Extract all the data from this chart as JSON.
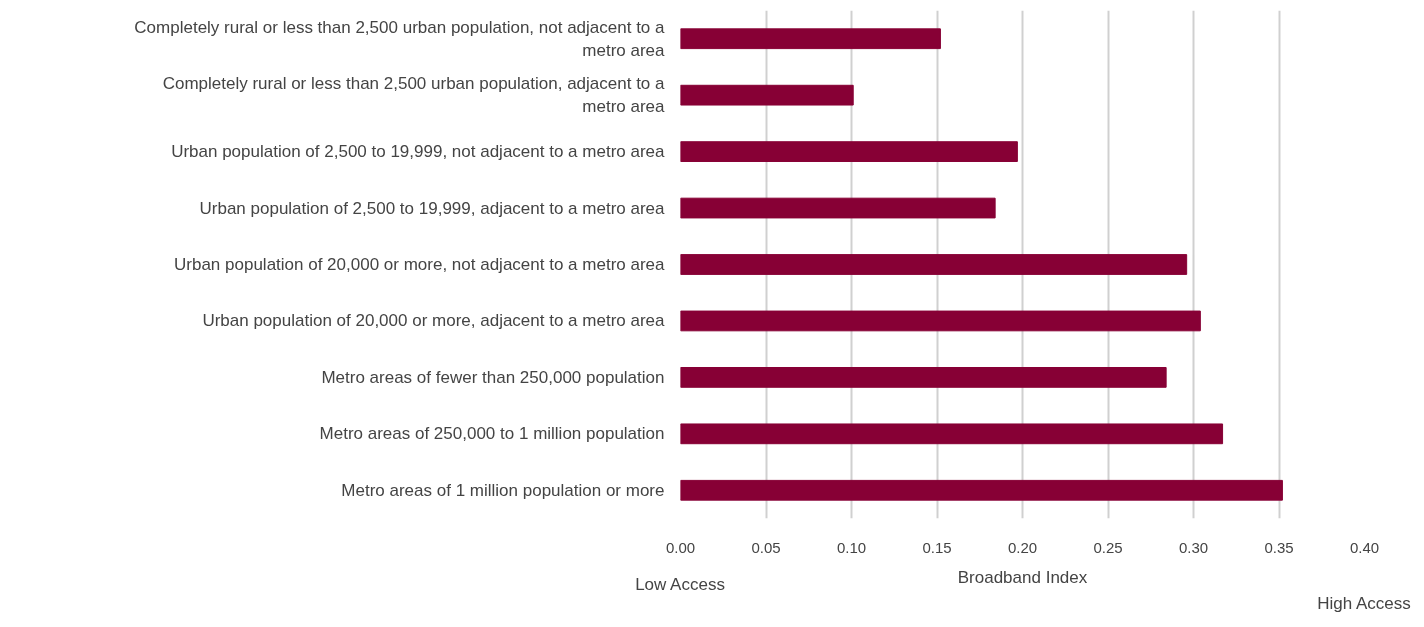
{
  "chart_data": {
    "type": "bar",
    "orientation": "horizontal",
    "xlabel": "Broadband Index",
    "categories": [
      "Completely rural or less than 2,500 urban population, not adjacent to a metro area",
      "Completely rural or less than 2,500 urban population, adjacent to a metro area",
      "Urban population of 2,500 to 19,999, not adjacent to a metro area",
      "Urban population of 2,500 to 19,999, adjacent to a metro area",
      "Urban population of 20,000 or more, not adjacent to a metro area",
      "Urban population of 20,000 or more, adjacent to a metro area",
      "Metro areas of fewer than 250,000 population",
      "Metro areas of 250,000 to 1 million population",
      "Metro areas of 1 million population or more"
    ],
    "values": [
      0.152,
      0.101,
      0.197,
      0.184,
      0.296,
      0.304,
      0.284,
      0.317,
      0.352
    ],
    "color": "#870035",
    "xlim": [
      0,
      0.4
    ],
    "xticks": [
      {
        "value": 0,
        "label": "0.00"
      },
      {
        "value": 0.05,
        "label": "0.05"
      },
      {
        "value": 0.1,
        "label": "0.10"
      },
      {
        "value": 0.15,
        "label": "0.15"
      },
      {
        "value": 0.2,
        "label": "0.20"
      },
      {
        "value": 0.25,
        "label": "0.25"
      },
      {
        "value": 0.3,
        "label": "0.30"
      },
      {
        "value": 0.35,
        "label": "0.35"
      },
      {
        "value": 0.4,
        "label": "0.40"
      }
    ],
    "grid": "x",
    "annotations": [
      "Low Access",
      "High Access"
    ]
  }
}
